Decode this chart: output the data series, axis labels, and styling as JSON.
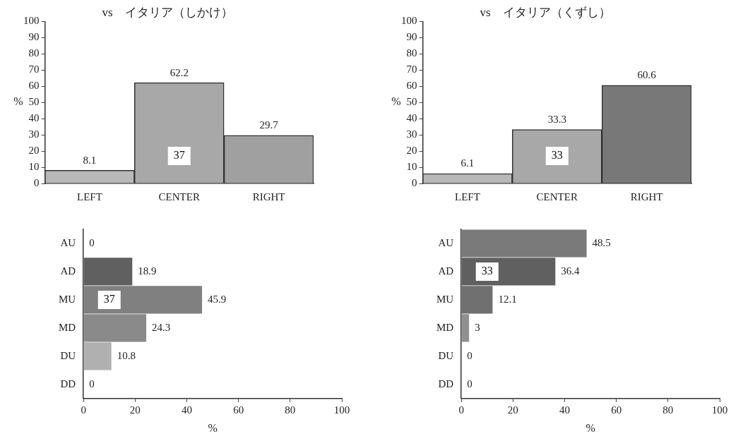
{
  "chart_data": [
    {
      "type": "bar",
      "title": "vs　イタリア（しかけ）",
      "ylabel": "%",
      "categories": [
        "LEFT",
        "CENTER",
        "RIGHT"
      ],
      "values": [
        8.1,
        62.2,
        29.7
      ],
      "colors": [
        "#b8b8b8",
        "#a8a8a8",
        "#a0a0a0"
      ],
      "ylim": [
        0,
        100
      ],
      "yticks": [
        0,
        10,
        20,
        30,
        40,
        50,
        60,
        70,
        80,
        90,
        100
      ],
      "grid": false,
      "data_labels": true,
      "annotations": [
        {
          "text": "37",
          "x": "CENTER",
          "y": 17
        }
      ]
    },
    {
      "type": "bar",
      "title": "vs　イタリア（くずし）",
      "ylabel": "%",
      "categories": [
        "LEFT",
        "CENTER",
        "RIGHT"
      ],
      "values": [
        6.1,
        33.3,
        60.6
      ],
      "colors": [
        "#b8b8b8",
        "#a8a8a8",
        "#787878"
      ],
      "ylim": [
        0,
        100
      ],
      "yticks": [
        0,
        10,
        20,
        30,
        40,
        50,
        60,
        70,
        80,
        90,
        100
      ],
      "grid": false,
      "data_labels": true,
      "annotations": [
        {
          "text": "33",
          "x": "CENTER",
          "y": 17
        }
      ]
    },
    {
      "type": "bar",
      "orientation": "horizontal",
      "xlabel": "%",
      "categories": [
        "AU",
        "AD",
        "MU",
        "MD",
        "DU",
        "DD"
      ],
      "values": [
        0,
        18.9,
        45.9,
        24.3,
        10.8,
        0
      ],
      "colors": [
        "#707070",
        "#606060",
        "#808080",
        "#8a8a8a",
        "#b0b0b0",
        "#b0b0b0"
      ],
      "xlim": [
        0,
        100
      ],
      "xticks": [
        0,
        20,
        40,
        60,
        80,
        100
      ],
      "grid": false,
      "data_labels": true,
      "annotations": [
        {
          "text": "37",
          "x": 10,
          "y": "MU"
        }
      ]
    },
    {
      "type": "bar",
      "orientation": "horizontal",
      "xlabel": "%",
      "categories": [
        "AU",
        "AD",
        "MU",
        "MD",
        "DU",
        "DD"
      ],
      "values": [
        48.5,
        36.4,
        12.1,
        3,
        0,
        0
      ],
      "colors": [
        "#7a7a7a",
        "#606060",
        "#707070",
        "#909090",
        "#b0b0b0",
        "#b0b0b0"
      ],
      "xlim": [
        0,
        100
      ],
      "xticks": [
        0,
        20,
        40,
        60,
        80,
        100
      ],
      "grid": false,
      "data_labels": true,
      "annotations": [
        {
          "text": "33",
          "x": 10,
          "y": "AD"
        }
      ]
    }
  ]
}
